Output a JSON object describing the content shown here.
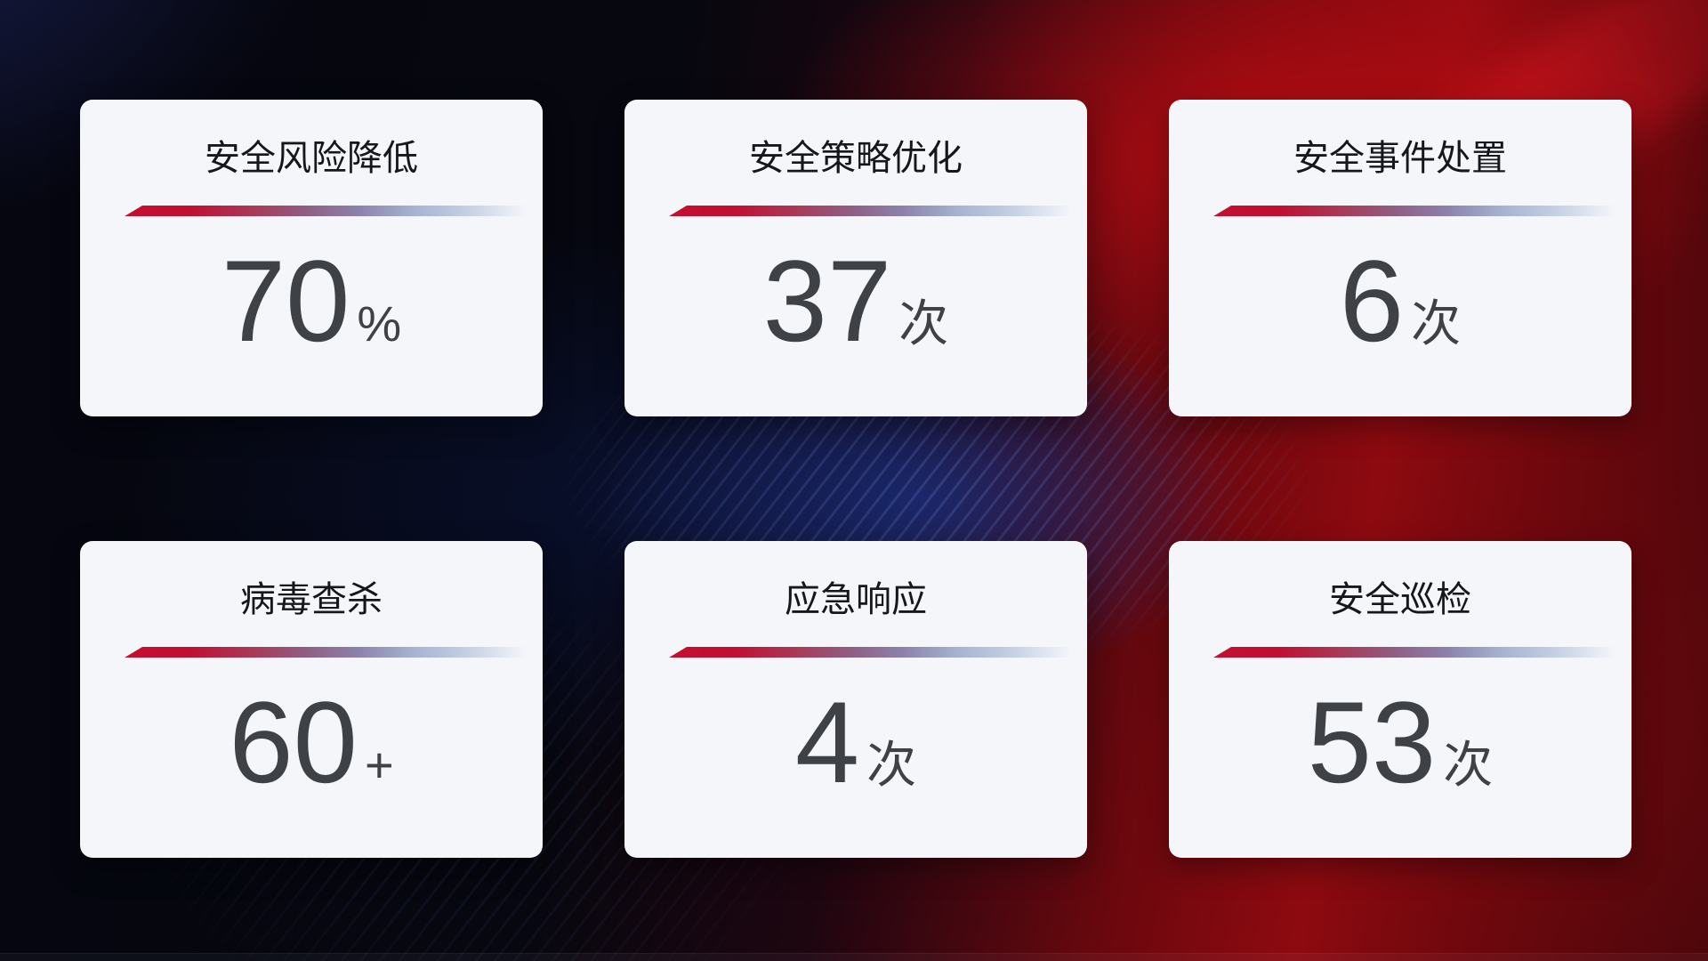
{
  "cards": [
    {
      "title": "安全风险降低",
      "value": "70",
      "unit": "%"
    },
    {
      "title": "安全策略优化",
      "value": "37",
      "unit": "次"
    },
    {
      "title": "安全事件处置",
      "value": "6",
      "unit": "次"
    },
    {
      "title": "病毒查杀",
      "value": "60",
      "unit": "+"
    },
    {
      "title": "应急响应",
      "value": "4",
      "unit": "次"
    },
    {
      "title": "安全巡检",
      "value": "53",
      "unit": "次"
    }
  ],
  "colors": {
    "divider_red": "#c50f2f",
    "divider_blue": "#a5b4d2",
    "card_background": "#f5f6fa",
    "title_text": "#15171c",
    "value_text": "#3e4146",
    "background_red_glow": "#c70d13",
    "background_blue_glow": "#193a9b",
    "background_base_dark": "#06070f"
  }
}
